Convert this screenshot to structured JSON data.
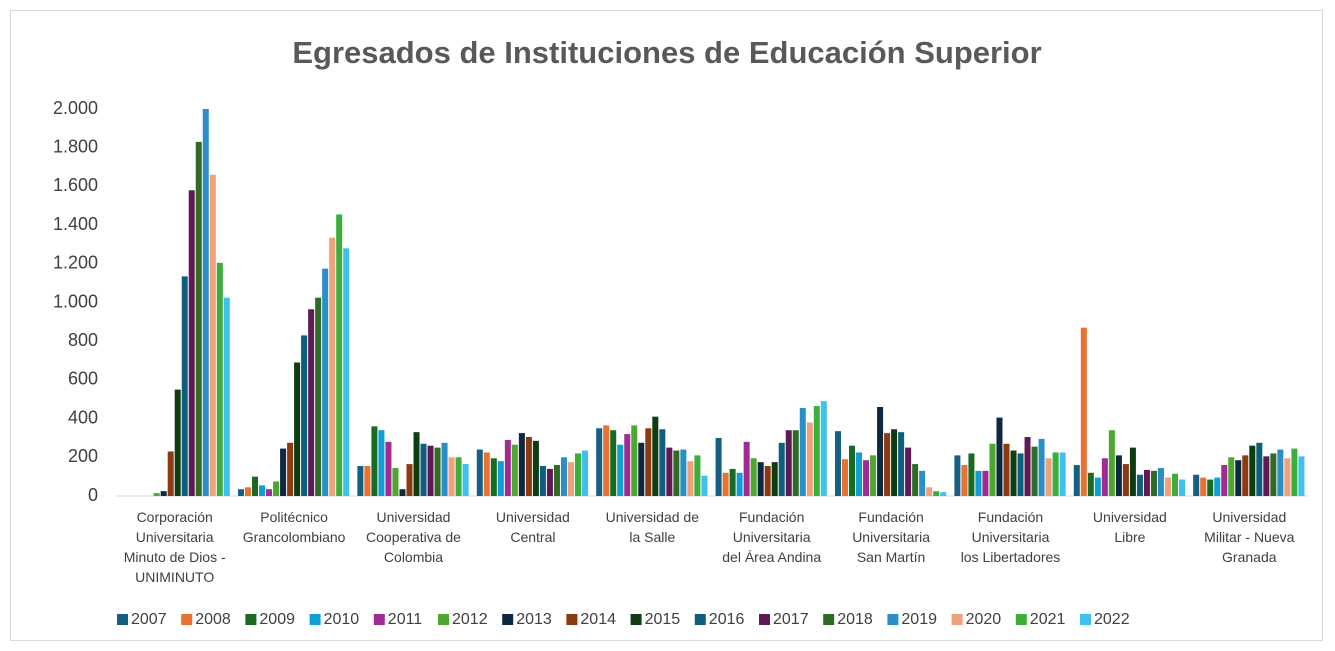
{
  "chart_data": {
    "type": "bar",
    "title": "Egresados de Instituciones de Educación Superior",
    "categories": [
      "Corporación Universitaria Minuto de Dios - UNIMINUTO",
      "Politécnico Grancolombiano",
      "Universidad Cooperativa de Colombia",
      "Universidad Central",
      "Universidad de la Salle",
      "Fundación Universitaria del Área Andina",
      "Fundación Universitaria San Martín",
      "Fundación Universitaria los Libertadores",
      "Universidad Libre",
      "Universidad Militar - Nueva Granada"
    ],
    "series": [
      {
        "name": "2007",
        "color": "#156082",
        "values": [
          0,
          35,
          155,
          240,
          350,
          300,
          335,
          210,
          160,
          110
        ]
      },
      {
        "name": "2008",
        "color": "#e97132",
        "values": [
          0,
          45,
          155,
          225,
          365,
          120,
          190,
          160,
          870,
          95
        ]
      },
      {
        "name": "2009",
        "color": "#196b24",
        "values": [
          0,
          100,
          360,
          195,
          340,
          140,
          260,
          220,
          120,
          85
        ]
      },
      {
        "name": "2010",
        "color": "#0f9ed5",
        "values": [
          0,
          55,
          340,
          180,
          265,
          120,
          225,
          130,
          95,
          95
        ]
      },
      {
        "name": "2011",
        "color": "#a02b93",
        "values": [
          0,
          35,
          280,
          290,
          320,
          280,
          185,
          130,
          195,
          160
        ]
      },
      {
        "name": "2012",
        "color": "#4ea72e",
        "values": [
          15,
          75,
          145,
          265,
          365,
          195,
          210,
          270,
          340,
          200
        ]
      },
      {
        "name": "2013",
        "color": "#0e2841",
        "values": [
          25,
          245,
          35,
          325,
          275,
          175,
          460,
          405,
          210,
          185
        ]
      },
      {
        "name": "2014",
        "color": "#8b3a12",
        "values": [
          230,
          275,
          165,
          305,
          350,
          155,
          325,
          270,
          165,
          210
        ]
      },
      {
        "name": "2015",
        "color": "#0f3d12",
        "values": [
          550,
          690,
          330,
          285,
          410,
          175,
          345,
          235,
          250,
          260
        ]
      },
      {
        "name": "2016",
        "color": "#0e5f7d",
        "values": [
          1135,
          830,
          270,
          155,
          345,
          275,
          330,
          220,
          110,
          275
        ]
      },
      {
        "name": "2017",
        "color": "#5f1a55",
        "values": [
          1580,
          965,
          260,
          140,
          250,
          340,
          250,
          305,
          135,
          205
        ]
      },
      {
        "name": "2018",
        "color": "#2f6b25",
        "values": [
          1830,
          1025,
          250,
          160,
          235,
          340,
          165,
          255,
          130,
          220
        ]
      },
      {
        "name": "2019",
        "color": "#2a8fc9",
        "values": [
          2000,
          1175,
          275,
          200,
          240,
          455,
          130,
          295,
          145,
          240
        ]
      },
      {
        "name": "2020",
        "color": "#f0a07a",
        "values": [
          1660,
          1335,
          200,
          175,
          180,
          380,
          45,
          195,
          95,
          195
        ]
      },
      {
        "name": "2021",
        "color": "#3cae3c",
        "values": [
          1205,
          1455,
          200,
          220,
          210,
          465,
          25,
          225,
          115,
          245
        ]
      },
      {
        "name": "2022",
        "color": "#3fc0ee",
        "values": [
          1025,
          1280,
          165,
          235,
          105,
          490,
          20,
          225,
          85,
          205
        ]
      }
    ],
    "ylim": [
      0,
      2000
    ],
    "yticks": [
      0,
      200,
      400,
      600,
      800,
      {
        "value": 1000,
        "label": "1.000"
      },
      {
        "value": 1200,
        "label": "1.200"
      },
      {
        "value": 1400,
        "label": "1.400"
      },
      {
        "value": 1600,
        "label": "1.600"
      },
      {
        "value": 1800,
        "label": "1.800"
      },
      {
        "value": 2000,
        "label": "2.000"
      }
    ],
    "grid": false,
    "legend": "bottom"
  }
}
